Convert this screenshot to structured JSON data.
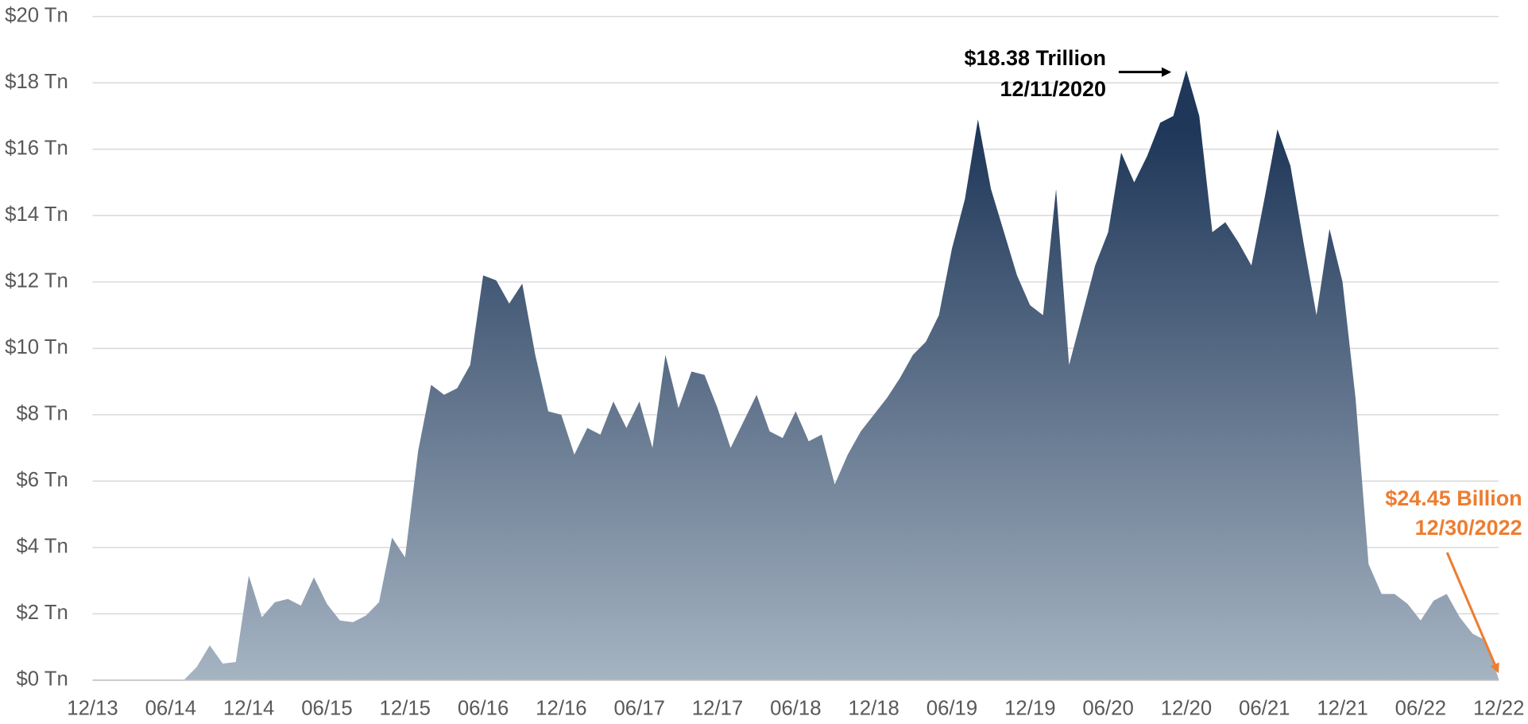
{
  "chart_data": {
    "type": "area",
    "x": [
      "12/13",
      "01/14",
      "02/14",
      "03/14",
      "04/14",
      "05/14",
      "06/14",
      "07/14",
      "08/14",
      "09/14",
      "10/14",
      "11/14",
      "12/14",
      "01/15",
      "02/15",
      "03/15",
      "04/15",
      "05/15",
      "06/15",
      "07/15",
      "08/15",
      "09/15",
      "10/15",
      "11/15",
      "12/15",
      "01/16",
      "02/16",
      "03/16",
      "04/16",
      "05/16",
      "06/16",
      "07/16",
      "08/16",
      "09/16",
      "10/16",
      "11/16",
      "12/16",
      "01/17",
      "02/17",
      "03/17",
      "04/17",
      "05/17",
      "06/17",
      "07/17",
      "08/17",
      "09/17",
      "10/17",
      "11/17",
      "12/17",
      "01/18",
      "02/18",
      "03/18",
      "04/18",
      "05/18",
      "06/18",
      "07/18",
      "08/18",
      "09/18",
      "10/18",
      "11/18",
      "12/18",
      "01/19",
      "02/19",
      "03/19",
      "04/19",
      "05/19",
      "06/19",
      "07/19",
      "08/19",
      "09/19",
      "10/19",
      "11/19",
      "12/19",
      "01/20",
      "02/20",
      "03/20",
      "04/20",
      "05/20",
      "06/20",
      "07/20",
      "08/20",
      "09/20",
      "10/20",
      "11/20",
      "12/20",
      "01/21",
      "02/21",
      "03/21",
      "04/21",
      "05/21",
      "06/21",
      "07/21",
      "08/21",
      "09/21",
      "10/21",
      "11/21",
      "12/21",
      "01/22",
      "02/22",
      "03/22",
      "04/22",
      "05/22",
      "06/22",
      "07/22",
      "08/22",
      "09/22",
      "10/22",
      "11/22",
      "12/22"
    ],
    "values": [
      0,
      0,
      0,
      0,
      0,
      0,
      0,
      0,
      0.4,
      1.05,
      0.5,
      0.55,
      3.15,
      1.9,
      2.35,
      2.45,
      2.25,
      3.1,
      2.3,
      1.8,
      1.75,
      1.95,
      2.35,
      4.3,
      3.7,
      6.9,
      8.9,
      8.6,
      8.8,
      9.5,
      12.2,
      12.05,
      11.35,
      11.95,
      9.8,
      8.1,
      8.0,
      6.8,
      7.6,
      7.4,
      8.4,
      7.6,
      8.4,
      7.0,
      9.8,
      8.2,
      9.3,
      9.2,
      8.2,
      7.0,
      7.8,
      8.6,
      7.5,
      7.3,
      8.1,
      7.2,
      7.4,
      5.9,
      6.8,
      7.5,
      8.0,
      8.5,
      9.1,
      9.8,
      10.2,
      11.0,
      13.0,
      14.5,
      16.9,
      14.8,
      13.5,
      12.2,
      11.3,
      11.0,
      14.8,
      9.5,
      11.0,
      12.5,
      13.5,
      15.9,
      15.0,
      15.8,
      16.8,
      17.0,
      18.38,
      17.0,
      13.5,
      13.8,
      13.2,
      12.5,
      14.5,
      16.6,
      15.5,
      13.2,
      11.0,
      13.6,
      12.0,
      8.5,
      3.5,
      2.6,
      2.6,
      2.3,
      1.8,
      2.4,
      2.6,
      1.9,
      1.4,
      1.2,
      0.02445
    ],
    "gradient": [
      "#1f3759",
      "#a6b4c2"
    ],
    "xlim": [
      "12/13",
      "12/22"
    ],
    "xticks": [
      "12/13",
      "06/14",
      "12/14",
      "06/15",
      "12/15",
      "06/16",
      "12/16",
      "06/17",
      "12/17",
      "06/18",
      "12/18",
      "06/19",
      "12/19",
      "06/20",
      "12/20",
      "06/21",
      "12/21",
      "06/22",
      "12/22"
    ],
    "ylim": [
      0,
      20
    ],
    "yticks": [
      {
        "value": 0,
        "label": "$0 Tn"
      },
      {
        "value": 2,
        "label": "$2 Tn"
      },
      {
        "value": 4,
        "label": "$4 Tn"
      },
      {
        "value": 6,
        "label": "$6 Tn"
      },
      {
        "value": 8,
        "label": "$8 Tn"
      },
      {
        "value": 10,
        "label": "$10 Tn"
      },
      {
        "value": 12,
        "label": "$12 Tn"
      },
      {
        "value": 14,
        "label": "$14 Tn"
      },
      {
        "value": 16,
        "label": "$16 Tn"
      },
      {
        "value": 18,
        "label": "$18 Tn"
      },
      {
        "value": 20,
        "label": "$20 Tn"
      }
    ],
    "grid": true,
    "annotations": [
      {
        "lines": [
          "$18.38 Trillion",
          "12/11/2020"
        ],
        "color": "#000000"
      },
      {
        "lines": [
          "$24.45 Billion",
          "12/30/2022"
        ],
        "color": "#ed7d31"
      }
    ]
  }
}
